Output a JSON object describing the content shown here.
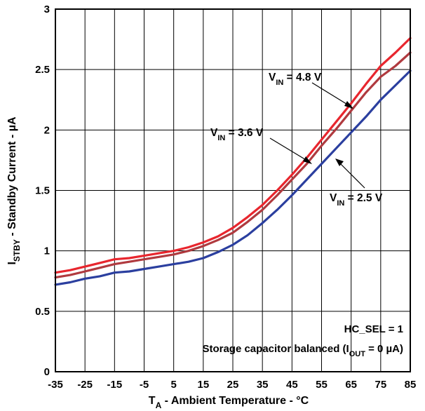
{
  "chart_data": {
    "type": "line",
    "xlabel": {
      "main": "T",
      "sub": "A",
      "rest": " - Ambient Temperature - °C"
    },
    "ylabel": {
      "main": "I",
      "sub": "STBY",
      "rest": " - Standby Current - µA"
    },
    "xlim": [
      -35,
      85
    ],
    "ylim": [
      0,
      3
    ],
    "x_ticks": [
      "-35",
      "-25",
      "-15",
      "-5",
      "5",
      "15",
      "25",
      "35",
      "45",
      "55",
      "65",
      "75",
      "85"
    ],
    "y_ticks": [
      "0",
      "0.5",
      "1",
      "1.5",
      "2",
      "2.5",
      "3"
    ],
    "grid": true,
    "annotations": {
      "line1": "HC_SEL = 1",
      "line2_pre": "Storage capacitor balanced (I",
      "line2_sub": "OUT",
      "line2_post": " = 0 µA)"
    },
    "series": [
      {
        "label_main": "V",
        "label_sub": "IN",
        "label_rest": " = 4.8 V",
        "color": "#e8262e",
        "x": [
          -35,
          -30,
          -25,
          -20,
          -15,
          -10,
          -5,
          0,
          5,
          10,
          15,
          20,
          25,
          30,
          35,
          40,
          45,
          50,
          55,
          60,
          65,
          70,
          75,
          80,
          85
        ],
        "y": [
          0.82,
          0.84,
          0.87,
          0.9,
          0.93,
          0.94,
          0.96,
          0.98,
          1.0,
          1.03,
          1.07,
          1.12,
          1.19,
          1.28,
          1.38,
          1.5,
          1.63,
          1.77,
          1.92,
          2.07,
          2.22,
          2.38,
          2.53,
          2.64,
          2.76
        ]
      },
      {
        "label_main": "V",
        "label_sub": "IN",
        "label_rest": " = 3.6 V",
        "color": "#b03a3f",
        "x": [
          -35,
          -30,
          -25,
          -20,
          -15,
          -10,
          -5,
          0,
          5,
          10,
          15,
          20,
          25,
          30,
          35,
          40,
          45,
          50,
          55,
          60,
          65,
          70,
          75,
          80,
          85
        ],
        "y": [
          0.78,
          0.8,
          0.83,
          0.86,
          0.89,
          0.91,
          0.93,
          0.95,
          0.97,
          1.0,
          1.04,
          1.09,
          1.15,
          1.24,
          1.34,
          1.46,
          1.59,
          1.72,
          1.87,
          2.01,
          2.16,
          2.31,
          2.44,
          2.53,
          2.64
        ]
      },
      {
        "label_main": "V",
        "label_sub": "IN",
        "label_rest": " = 2.5 V",
        "color": "#2b3f9f",
        "x": [
          -35,
          -30,
          -25,
          -20,
          -15,
          -10,
          -5,
          0,
          5,
          10,
          15,
          20,
          25,
          30,
          35,
          40,
          45,
          50,
          55,
          60,
          65,
          70,
          75,
          80,
          85
        ],
        "y": [
          0.72,
          0.74,
          0.77,
          0.79,
          0.82,
          0.83,
          0.85,
          0.87,
          0.89,
          0.91,
          0.94,
          0.99,
          1.05,
          1.13,
          1.23,
          1.34,
          1.46,
          1.59,
          1.72,
          1.85,
          1.98,
          2.11,
          2.25,
          2.37,
          2.49
        ]
      }
    ]
  }
}
